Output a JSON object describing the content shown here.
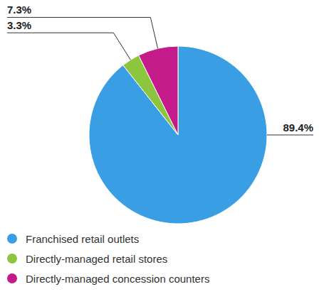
{
  "chart_data": {
    "type": "pie",
    "categories": [
      "Franchised retail outlets",
      "Directly-managed retail stores",
      "Directly-managed concession counters"
    ],
    "values": [
      89.4,
      3.3,
      7.3
    ],
    "value_labels": [
      "89.4%",
      "3.3%",
      "7.3%"
    ],
    "colors": [
      "#3a9ee4",
      "#8cc63f",
      "#c51a8a"
    ],
    "legend": "bottom-left",
    "data_labels": true
  }
}
